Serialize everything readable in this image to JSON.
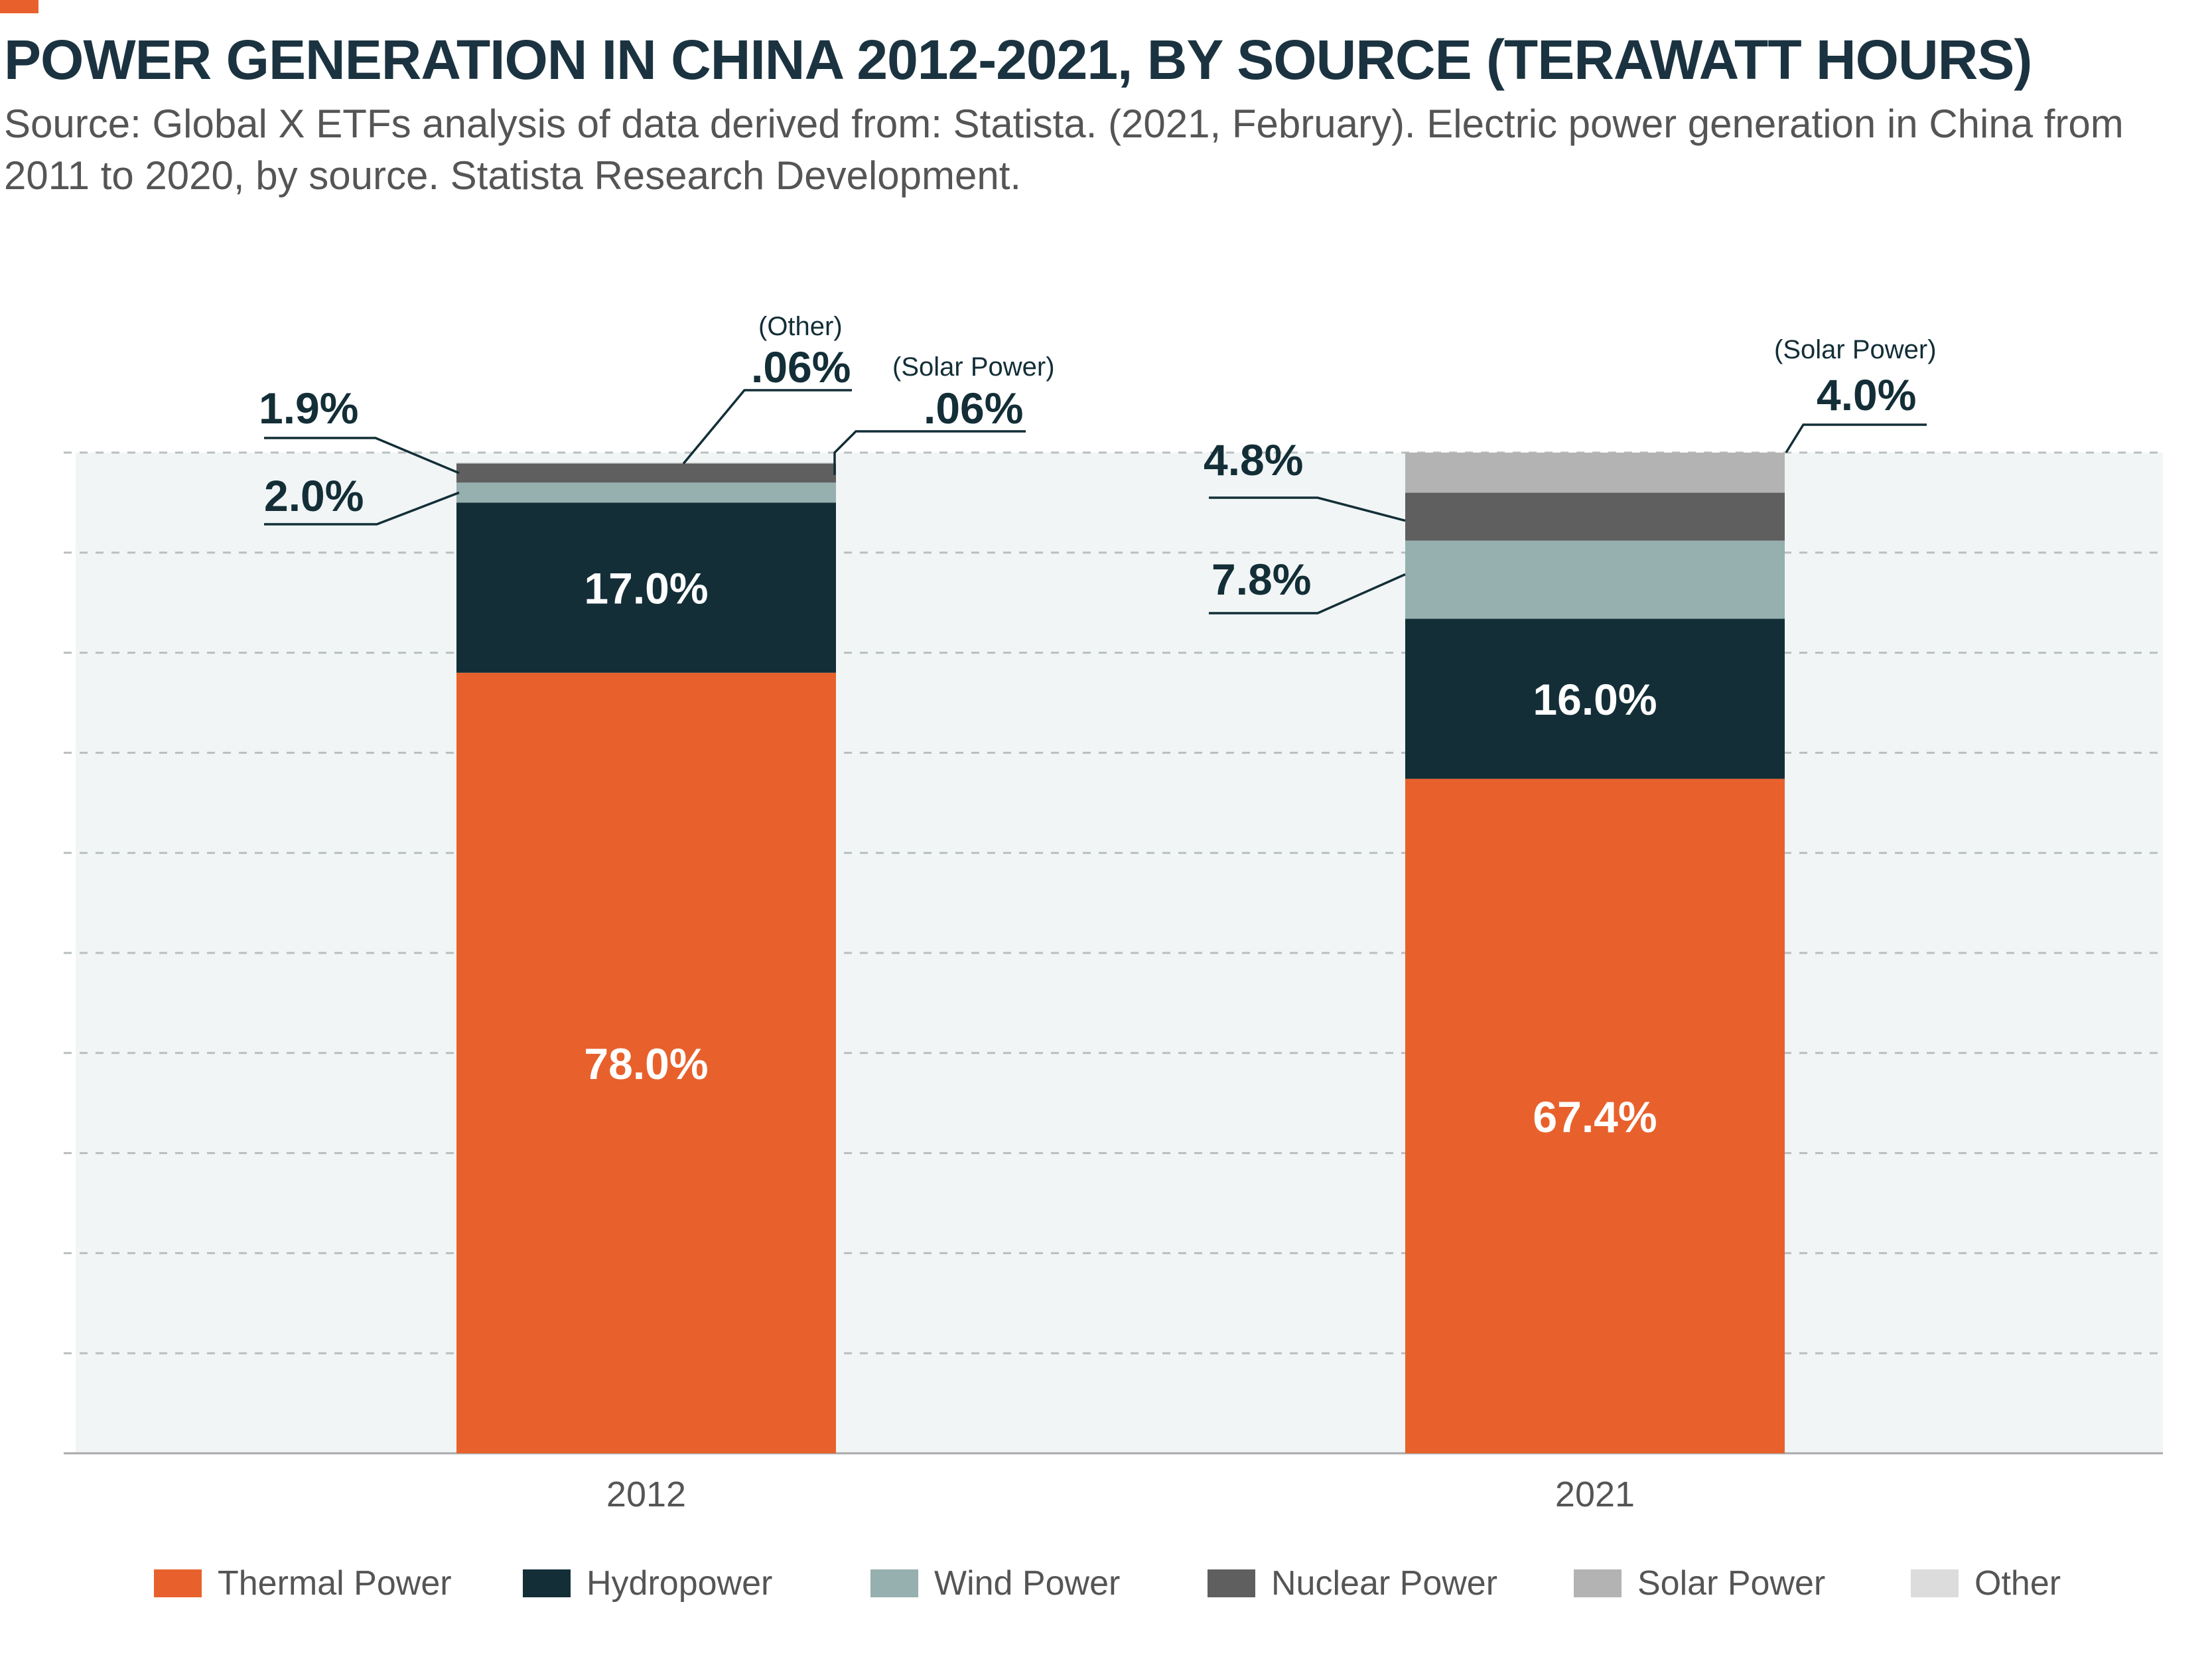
{
  "header": {
    "title": "POWER GENERATION IN CHINA 2012-2021, BY SOURCE (TERAWATT HOURS)",
    "source": "Source: Global X ETFs analysis of data derived from: Statista. (2021, February). Electric power generation in China from 2011 to 2020, by source. Statista Research Development."
  },
  "colors": {
    "accent": "#e8612c",
    "thermal": "#e8612c",
    "hydro": "#132e37",
    "wind": "#96afaf",
    "nuclear": "#5f5f5f",
    "solar": "#b3b3b3",
    "other": "#dcdcdc",
    "plot_background": "#f1f5f5"
  },
  "chart_data": {
    "type": "bar",
    "stacked": true,
    "categories": [
      "2012",
      "2021"
    ],
    "ylim": [
      0,
      100
    ],
    "grid": true,
    "legend_position": "bottom",
    "series": [
      {
        "name": "Thermal Power",
        "color_key": "thermal",
        "values": [
          78.0,
          67.4
        ],
        "labels": [
          "78.0%",
          "67.4%"
        ]
      },
      {
        "name": "Hydropower",
        "color_key": "hydro",
        "values": [
          17.0,
          16.0
        ],
        "labels": [
          "17.0%",
          "16.0%"
        ]
      },
      {
        "name": "Wind Power",
        "color_key": "wind",
        "values": [
          2.0,
          7.8
        ],
        "labels": [
          "2.0%",
          "7.8%"
        ]
      },
      {
        "name": "Nuclear Power",
        "color_key": "nuclear",
        "values": [
          1.9,
          4.8
        ],
        "labels": [
          "1.9%",
          "4.8%"
        ]
      },
      {
        "name": "Solar Power",
        "color_key": "solar",
        "values": [
          0.06,
          4.0
        ],
        "labels": [
          ".06%",
          "4.0%"
        ]
      },
      {
        "name": "Other",
        "color_key": "other",
        "values": [
          0.06,
          0
        ],
        "labels": [
          ".06%",
          ""
        ]
      }
    ],
    "annotations": [
      {
        "category": "2012",
        "series": "Nuclear Power",
        "value_label": "1.9%",
        "caption": ""
      },
      {
        "category": "2012",
        "series": "Wind Power",
        "value_label": "2.0%",
        "caption": ""
      },
      {
        "category": "2012",
        "series": "Other",
        "value_label": ".06%",
        "caption": "(Other)"
      },
      {
        "category": "2012",
        "series": "Solar Power",
        "value_label": ".06%",
        "caption": "(Solar Power)"
      },
      {
        "category": "2021",
        "series": "Nuclear Power",
        "value_label": "4.8%",
        "caption": ""
      },
      {
        "category": "2021",
        "series": "Wind Power",
        "value_label": "7.8%",
        "caption": ""
      },
      {
        "category": "2021",
        "series": "Solar Power",
        "value_label": "4.0%",
        "caption": "(Solar Power)"
      }
    ]
  }
}
